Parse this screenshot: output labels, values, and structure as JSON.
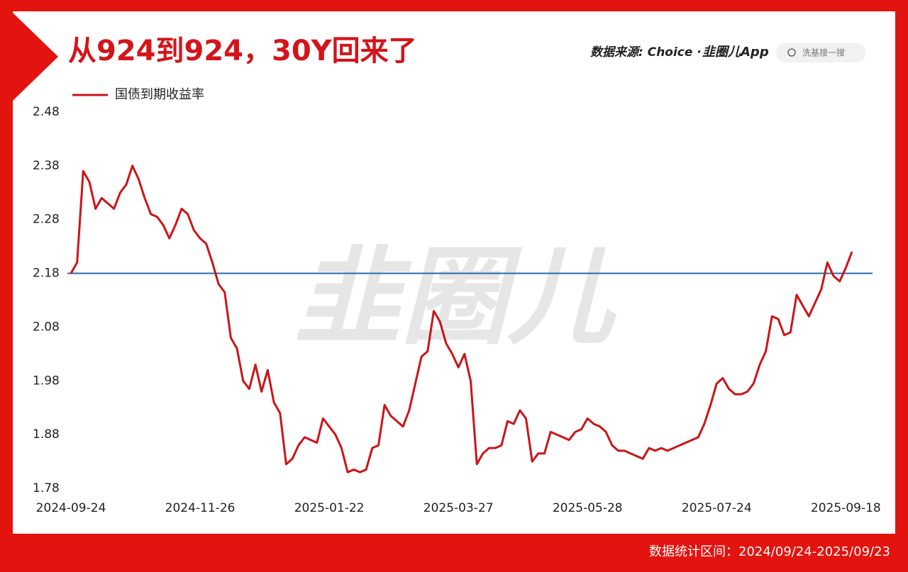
{
  "chart_data": {
    "type": "line",
    "title": "从924到924，30Y回来了",
    "source": "数据来源: Choice ·",
    "brand": "韭圈儿App",
    "search_placeholder": "洗基搜一搜",
    "watermark": "韭圈儿",
    "footer": "数据统计区间：2024/09/24-2025/09/23",
    "legend": "top-left",
    "grid": false,
    "reference_line": 2.18,
    "reference_color": "#2a6aa8",
    "ylim": [
      1.78,
      2.48
    ],
    "yticks": [
      1.78,
      1.88,
      1.98,
      2.08,
      2.18,
      2.28,
      2.38,
      2.48
    ],
    "categories": [
      "2024-09-24",
      null,
      null,
      null,
      null,
      null,
      null,
      null,
      null,
      null,
      null,
      null,
      null,
      null,
      null,
      null,
      null,
      null,
      null,
      null,
      null,
      "2024-11-26",
      null,
      null,
      null,
      null,
      null,
      null,
      null,
      null,
      null,
      null,
      null,
      null,
      null,
      null,
      null,
      null,
      null,
      null,
      null,
      null,
      "2025-01-22",
      null,
      null,
      null,
      null,
      null,
      null,
      null,
      null,
      null,
      null,
      null,
      null,
      null,
      null,
      null,
      null,
      null,
      null,
      null,
      null,
      "2025-03-27",
      null,
      null,
      null,
      null,
      null,
      null,
      null,
      null,
      null,
      null,
      null,
      null,
      null,
      null,
      null,
      null,
      null,
      null,
      null,
      null,
      "2025-05-28",
      null,
      null,
      null,
      null,
      null,
      null,
      null,
      null,
      null,
      null,
      null,
      null,
      null,
      null,
      null,
      null,
      null,
      null,
      null,
      null,
      "2025-07-24",
      null,
      null,
      null,
      null,
      null,
      null,
      null,
      null,
      null,
      null,
      null,
      null,
      null,
      null,
      null,
      null,
      null,
      null,
      null,
      null,
      "2025-09-18",
      null
    ],
    "series": [
      {
        "name": "国债到期收益率",
        "color": "#cc1418",
        "values": [
          2.18,
          2.2,
          2.37,
          2.35,
          2.3,
          2.32,
          2.31,
          2.3,
          2.33,
          2.345,
          2.38,
          2.355,
          2.32,
          2.29,
          2.285,
          2.27,
          2.245,
          2.27,
          2.3,
          2.29,
          2.26,
          2.245,
          2.235,
          2.2,
          2.16,
          2.145,
          2.06,
          2.04,
          1.98,
          1.965,
          2.01,
          1.96,
          2.0,
          1.94,
          1.92,
          1.825,
          1.835,
          1.86,
          1.875,
          1.87,
          1.865,
          1.91,
          1.895,
          1.88,
          1.855,
          1.81,
          1.815,
          1.81,
          1.815,
          1.855,
          1.86,
          1.935,
          1.915,
          1.905,
          1.895,
          1.925,
          1.975,
          2.025,
          2.035,
          2.11,
          2.09,
          2.05,
          2.03,
          2.005,
          2.03,
          1.98,
          1.825,
          1.845,
          1.855,
          1.855,
          1.86,
          1.905,
          1.9,
          1.925,
          1.91,
          1.83,
          1.845,
          1.845,
          1.885,
          1.88,
          1.875,
          1.87,
          1.885,
          1.89,
          1.91,
          1.9,
          1.895,
          1.885,
          1.86,
          1.85,
          1.85,
          1.845,
          1.84,
          1.835,
          1.855,
          1.85,
          1.855,
          1.85,
          1.855,
          1.86,
          1.865,
          1.87,
          1.875,
          1.9,
          1.935,
          1.975,
          1.985,
          1.965,
          1.955,
          1.955,
          1.96,
          1.975,
          2.01,
          2.035,
          2.1,
          2.095,
          2.065,
          2.07,
          2.14,
          2.12,
          2.1,
          2.125,
          2.15,
          2.2,
          2.175,
          2.165,
          2.19,
          2.22
        ]
      }
    ]
  }
}
